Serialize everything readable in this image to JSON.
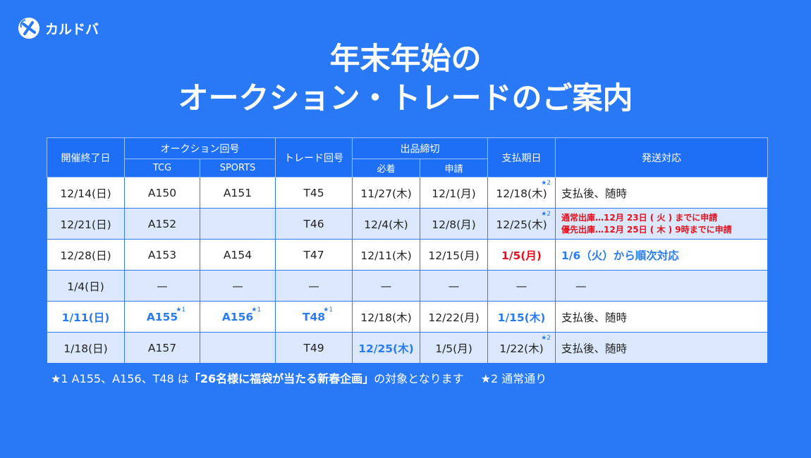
{
  "brand": {
    "name": "カルドバ",
    "logo_icon": "kardoba-logo-icon"
  },
  "title": {
    "line1": "年末年始の",
    "line2": "オークション・トレードのご案内"
  },
  "table": {
    "headers": {
      "end_date": "開催終了日",
      "auction_no": "オークション回号",
      "tcg": "TCG",
      "sports": "SPORTS",
      "trade_no": "トレード回号",
      "deadline": "出品締切",
      "arrival": "必着",
      "application": "申請",
      "payment_date": "支払期日",
      "shipping": "発送対応"
    },
    "rows": [
      {
        "date": "12/14(日)",
        "tcg": "A150",
        "sports": "A151",
        "trade": "T45",
        "arrival": "11/27(木)",
        "apply": "12/1(月)",
        "payment": "12/18(木)",
        "payment_mark": "★2",
        "shipping": "支払後、随時"
      },
      {
        "date": "12/21(日)",
        "tcg": "A152",
        "sports": "",
        "trade": "T46",
        "arrival": "12/4(木)",
        "apply": "12/8(月)",
        "payment": "12/25(木)",
        "payment_mark": "★2",
        "shipping_line1": "通常出庫…12月 23日 ( 火 ) までに申請",
        "shipping_line2": "優先出庫…12月 25日 ( 木 ) 9時までに申請"
      },
      {
        "date": "12/28(日)",
        "tcg": "A153",
        "sports": "A154",
        "trade": "T47",
        "arrival": "12/11(木)",
        "apply": "12/15(月)",
        "payment": "1/5(月)",
        "shipping": "1/6（火）から順次対応"
      },
      {
        "date": "1/4(日)",
        "tcg": "—",
        "sports": "—",
        "trade": "—",
        "arrival": "—",
        "apply": "—",
        "payment": "—",
        "shipping": "—"
      },
      {
        "date": "1/11(日)",
        "tcg": "A155",
        "tcg_mark": "★1",
        "sports": "A156",
        "sports_mark": "★1",
        "trade": "T48",
        "trade_mark": "★1",
        "arrival": "12/18(木)",
        "apply": "12/22(月)",
        "payment": "1/15(木)",
        "shipping": "支払後、随時"
      },
      {
        "date": "1/18(日)",
        "tcg": "A157",
        "sports": "",
        "trade": "T49",
        "arrival": "12/25(木)",
        "apply": "1/5(月)",
        "payment": "1/22(木)",
        "payment_mark": "★2",
        "shipping": "支払後、随時"
      }
    ]
  },
  "footnote": {
    "prefix": "★1 A155、A156、T48 は",
    "highlight": "「26名様に福袋が当たる新春企画」",
    "suffix": "の対象となります",
    "note2": "★2 通常通り"
  },
  "colors": {
    "background": "#2979f7",
    "header": "#1e6ff5",
    "row_alt": "#dbe8fb",
    "accent_blue": "#2a7bf0",
    "accent_red": "#e5101e"
  }
}
